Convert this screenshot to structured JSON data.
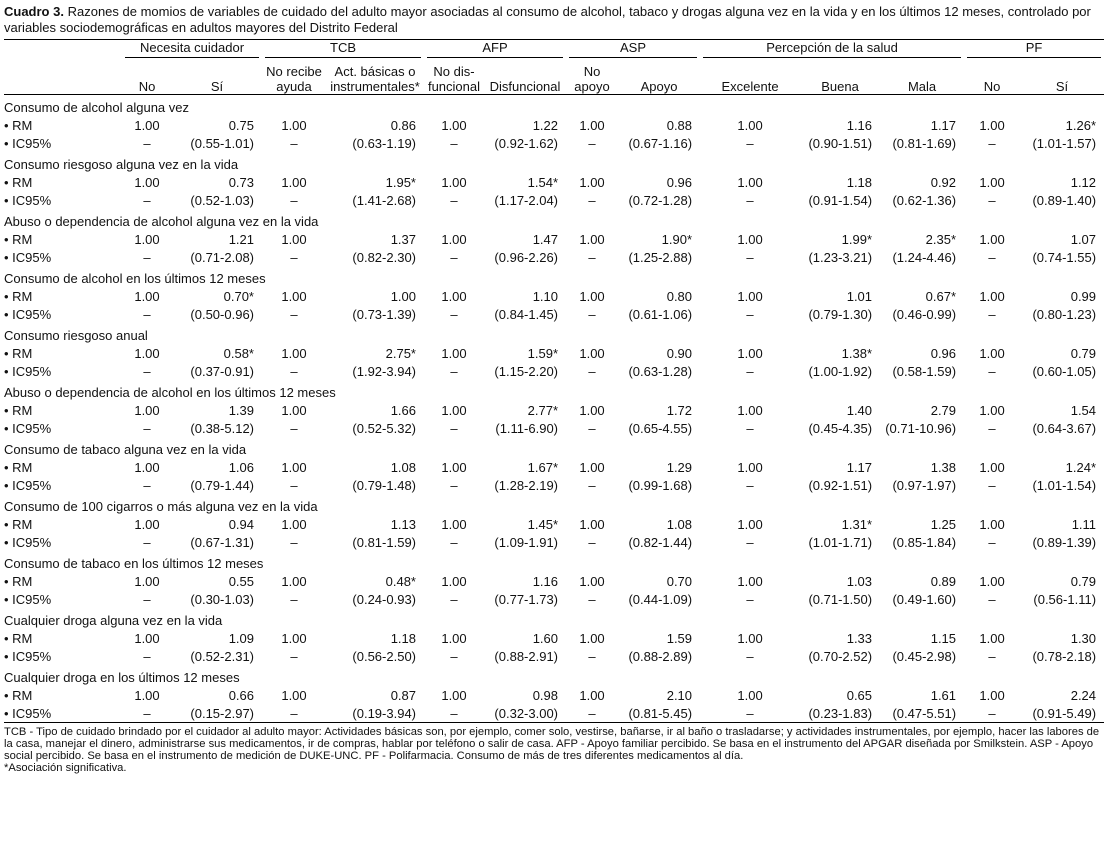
{
  "caption": {
    "label": "Cuadro 3.",
    "text": "Razones de momios de variables de cuidado del adulto mayor asociadas al consumo de alcohol, tabaco y drogas alguna vez en la vida y en los últimos 12 meses, controlado por variables sociodemográficas en adultos mayores del Distrito Federal"
  },
  "header": {
    "groups": [
      "Necesita cuidador",
      "TCB",
      "AFP",
      "ASP",
      "Percepción de la salud",
      "PF"
    ],
    "subheaders": [
      [
        "No",
        "Sí"
      ],
      [
        "No recibe ayuda",
        "Act. básicas o instrumentales*"
      ],
      [
        "No dis-funcional",
        "Disfuncional"
      ],
      [
        "No apoyo",
        "Apoyo"
      ],
      [
        "Excelente",
        "Buena",
        "Mala"
      ],
      [
        "No",
        "Sí"
      ]
    ]
  },
  "row_labels": {
    "rm": "• RM",
    "ic": "• IC95%"
  },
  "rows": [
    {
      "title": "Consumo de alcohol alguna vez",
      "rm": [
        "1.00",
        "0.75",
        "1.00",
        "0.86",
        "1.00",
        "1.22",
        "1.00",
        "0.88",
        "1.00",
        "1.16",
        "1.17",
        "1.00",
        "1.26*"
      ],
      "ic": [
        "–",
        "(0.55-1.01)",
        "–",
        "(0.63-1.19)",
        "–",
        "(0.92-1.62)",
        "–",
        "(0.67-1.16)",
        "–",
        "(0.90-1.51)",
        "(0.81-1.69)",
        "–",
        "(1.01-1.57)"
      ]
    },
    {
      "title": "Consumo riesgoso alguna vez en la vida",
      "rm": [
        "1.00",
        "0.73",
        "1.00",
        "1.95*",
        "1.00",
        "1.54*",
        "1.00",
        "0.96",
        "1.00",
        "1.18",
        "0.92",
        "1.00",
        "1.12"
      ],
      "ic": [
        "–",
        "(0.52-1.03)",
        "–",
        "(1.41-2.68)",
        "–",
        "(1.17-2.04)",
        "–",
        "(0.72-1.28)",
        "–",
        "(0.91-1.54)",
        "(0.62-1.36)",
        "–",
        "(0.89-1.40)"
      ]
    },
    {
      "title": "Abuso o dependencia de alcohol alguna vez en la vida",
      "rm": [
        "1.00",
        "1.21",
        "1.00",
        "1.37",
        "1.00",
        "1.47",
        "1.00",
        "1.90*",
        "1.00",
        "1.99*",
        "2.35*",
        "1.00",
        "1.07"
      ],
      "ic": [
        "–",
        "(0.71-2.08)",
        "–",
        "(0.82-2.30)",
        "–",
        "(0.96-2.26)",
        "–",
        "(1.25-2.88)",
        "–",
        "(1.23-3.21)",
        "(1.24-4.46)",
        "–",
        "(0.74-1.55)"
      ]
    },
    {
      "title": "Consumo de alcohol en los últimos 12 meses",
      "rm": [
        "1.00",
        "0.70*",
        "1.00",
        "1.00",
        "1.00",
        "1.10",
        "1.00",
        "0.80",
        "1.00",
        "1.01",
        "0.67*",
        "1.00",
        "0.99"
      ],
      "ic": [
        "–",
        "(0.50-0.96)",
        "–",
        "(0.73-1.39)",
        "–",
        "(0.84-1.45)",
        "–",
        "(0.61-1.06)",
        "–",
        "(0.79-1.30)",
        "(0.46-0.99)",
        "–",
        "(0.80-1.23)"
      ]
    },
    {
      "title": "Consumo riesgoso anual",
      "rm": [
        "1.00",
        "0.58*",
        "1.00",
        "2.75*",
        "1.00",
        "1.59*",
        "1.00",
        "0.90",
        "1.00",
        "1.38*",
        "0.96",
        "1.00",
        "0.79"
      ],
      "ic": [
        "–",
        "(0.37-0.91)",
        "–",
        "(1.92-3.94)",
        "–",
        "(1.15-2.20)",
        "–",
        "(0.63-1.28)",
        "–",
        "(1.00-1.92)",
        "(0.58-1.59)",
        "–",
        "(0.60-1.05)"
      ]
    },
    {
      "title": "Abuso o dependencia de alcohol en los últimos 12 meses",
      "rm": [
        "1.00",
        "1.39",
        "1.00",
        "1.66",
        "1.00",
        "2.77*",
        "1.00",
        "1.72",
        "1.00",
        "1.40",
        "2.79",
        "1.00",
        "1.54"
      ],
      "ic": [
        "–",
        "(0.38-5.12)",
        "–",
        "(0.52-5.32)",
        "–",
        "(1.11-6.90)",
        "–",
        "(0.65-4.55)",
        "–",
        "(0.45-4.35)",
        "(0.71-10.96)",
        "–",
        "(0.64-3.67)"
      ]
    },
    {
      "title": "Consumo de tabaco alguna vez en la vida",
      "rm": [
        "1.00",
        "1.06",
        "1.00",
        "1.08",
        "1.00",
        "1.67*",
        "1.00",
        "1.29",
        "1.00",
        "1.17",
        "1.38",
        "1.00",
        "1.24*"
      ],
      "ic": [
        "–",
        "(0.79-1.44)",
        "–",
        "(0.79-1.48)",
        "–",
        "(1.28-2.19)",
        "–",
        "(0.99-1.68)",
        "–",
        "(0.92-1.51)",
        "(0.97-1.97)",
        "–",
        "(1.01-1.54)"
      ]
    },
    {
      "title": "Consumo de 100 cigarros o más alguna vez en la vida",
      "rm": [
        "1.00",
        "0.94",
        "1.00",
        "1.13",
        "1.00",
        "1.45*",
        "1.00",
        "1.08",
        "1.00",
        "1.31*",
        "1.25",
        "1.00",
        "1.11"
      ],
      "ic": [
        "–",
        "(0.67-1.31)",
        "–",
        "(0.81-1.59)",
        "–",
        "(1.09-1.91)",
        "–",
        "(0.82-1.44)",
        "–",
        "(1.01-1.71)",
        "(0.85-1.84)",
        "–",
        "(0.89-1.39)"
      ]
    },
    {
      "title": "Consumo de tabaco en los últimos 12 meses",
      "rm": [
        "1.00",
        "0.55",
        "1.00",
        "0.48*",
        "1.00",
        "1.16",
        "1.00",
        "0.70",
        "1.00",
        "1.03",
        "0.89",
        "1.00",
        "0.79"
      ],
      "ic": [
        "–",
        "(0.30-1.03)",
        "–",
        "(0.24-0.93)",
        "–",
        "(0.77-1.73)",
        "–",
        "(0.44-1.09)",
        "–",
        "(0.71-1.50)",
        "(0.49-1.60)",
        "–",
        "(0.56-1.11)"
      ]
    },
    {
      "title": "Cualquier droga alguna vez en la vida",
      "rm": [
        "1.00",
        "1.09",
        "1.00",
        "1.18",
        "1.00",
        "1.60",
        "1.00",
        "1.59",
        "1.00",
        "1.33",
        "1.15",
        "1.00",
        "1.30"
      ],
      "ic": [
        "–",
        "(0.52-2.31)",
        "–",
        "(0.56-2.50)",
        "–",
        "(0.88-2.91)",
        "–",
        "(0.88-2.89)",
        "–",
        "(0.70-2.52)",
        "(0.45-2.98)",
        "–",
        "(0.78-2.18)"
      ]
    },
    {
      "title": "Cualquier droga en los últimos 12 meses",
      "rm": [
        "1.00",
        "0.66",
        "1.00",
        "0.87",
        "1.00",
        "0.98",
        "1.00",
        "2.10",
        "1.00",
        "0.65",
        "1.61",
        "1.00",
        "2.24"
      ],
      "ic": [
        "–",
        "(0.15-2.97)",
        "–",
        "(0.19-3.94)",
        "–",
        "(0.32-3.00)",
        "–",
        "(0.81-5.45)",
        "–",
        "(0.23-1.83)",
        "(0.47-5.51)",
        "–",
        "(0.91-5.49)"
      ]
    }
  ],
  "footnotes": [
    "TCB - Tipo de cuidado brindado por el cuidador al adulto mayor: Actividades básicas son, por ejemplo, comer solo, vestirse, bañarse, ir al baño o trasladarse; y actividades instrumentales, por ejemplo, hacer las labores de la casa, manejar el dinero, administrarse sus medicamentos, ir de compras, hablar por teléfono o salir de casa. AFP - Apoyo familiar percibido. Se basa en el instrumento del APGAR diseñada por Smilkstein. ASP - Apoyo social percibido. Se basa en el instrumento de medición de DUKE-UNC. PF - Polifarmacia. Consumo de más de tres diferentes medicamentos al día.",
    "*Asociación significativa."
  ]
}
